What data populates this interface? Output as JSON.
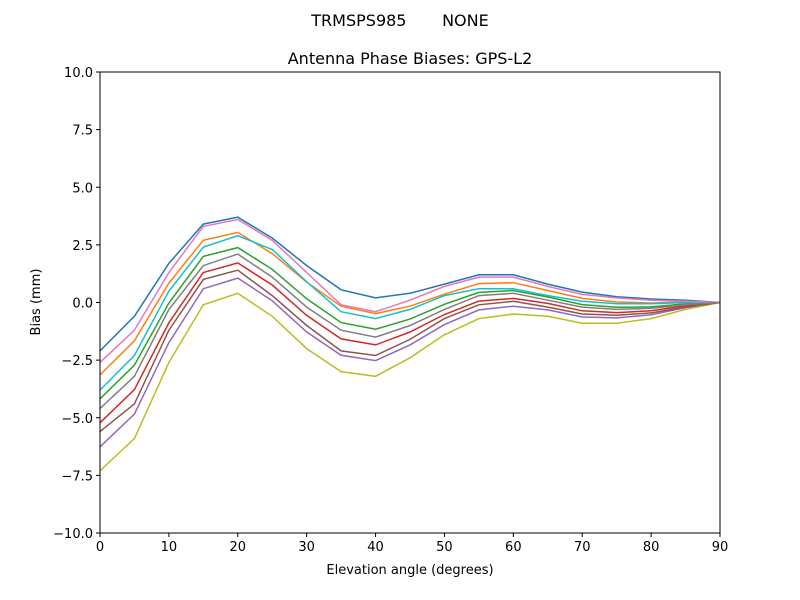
{
  "chart_data": {
    "type": "line",
    "suptitle": "TRMSPS985       NONE",
    "title": "Antenna Phase Biases: GPS-L2",
    "xlabel": "Elevation angle (degrees)",
    "ylabel": "Bias (mm)",
    "xlim": [
      0,
      90
    ],
    "ylim": [
      -10,
      10
    ],
    "xticks": [
      0,
      10,
      20,
      30,
      40,
      50,
      60,
      70,
      80,
      90
    ],
    "yticks": [
      -10.0,
      -7.5,
      -5.0,
      -2.5,
      0.0,
      2.5,
      5.0,
      7.5,
      10.0
    ],
    "ytick_labels": [
      "−10.0",
      "−7.5",
      "−5.0",
      "−2.5",
      "0.0",
      "2.5",
      "5.0",
      "7.5",
      "10.0"
    ],
    "grid": false,
    "x": [
      0,
      5,
      10,
      15,
      20,
      25,
      30,
      35,
      40,
      45,
      50,
      55,
      60,
      65,
      70,
      75,
      80,
      85,
      90
    ],
    "series": [
      {
        "color": "#1f77b4",
        "values": [
          -2.1,
          -0.6,
          1.7,
          3.4,
          3.7,
          2.8,
          1.6,
          0.55,
          0.2,
          0.4,
          0.8,
          1.2,
          1.2,
          0.8,
          0.45,
          0.25,
          0.15,
          0.1,
          0
        ]
      },
      {
        "color": "#ff7f0e",
        "values": [
          -3.14,
          -1.66,
          0.84,
          2.7,
          3.04,
          2.12,
          0.88,
          -0.16,
          -0.48,
          -0.16,
          0.36,
          0.82,
          0.86,
          0.52,
          0.18,
          0.02,
          -0.02,
          0.02,
          0
        ]
      },
      {
        "color": "#2ca02c",
        "values": [
          -4.18,
          -2.72,
          -0.02,
          2.0,
          2.38,
          1.44,
          0.16,
          -0.87,
          -1.16,
          -0.72,
          -0.08,
          0.44,
          0.52,
          0.24,
          -0.09,
          -0.21,
          -0.19,
          -0.06,
          0
        ]
      },
      {
        "color": "#d62728",
        "values": [
          -5.22,
          -3.78,
          -0.88,
          1.3,
          1.72,
          0.76,
          -0.56,
          -1.58,
          -1.84,
          -1.28,
          -0.52,
          0.06,
          0.18,
          -0.04,
          -0.36,
          -0.44,
          -0.36,
          -0.14,
          0
        ]
      },
      {
        "color": "#9467bd",
        "values": [
          -6.26,
          -4.84,
          -1.74,
          0.6,
          1.06,
          0.08,
          -1.28,
          -2.29,
          -2.52,
          -1.84,
          -0.96,
          -0.32,
          -0.16,
          -0.32,
          -0.63,
          -0.67,
          -0.53,
          -0.22,
          0
        ]
      },
      {
        "color": "#bcbd22",
        "values": [
          -7.3,
          -5.9,
          -2.6,
          -0.1,
          0.4,
          -0.6,
          -2.0,
          -3.0,
          -3.2,
          -2.4,
          -1.4,
          -0.7,
          -0.5,
          -0.6,
          -0.9,
          -0.9,
          -0.7,
          -0.3,
          0
        ]
      },
      {
        "color": "#17becf",
        "values": [
          -3.8,
          -2.3,
          0.5,
          2.4,
          2.9,
          2.3,
          0.9,
          -0.4,
          -0.7,
          -0.3,
          0.3,
          0.6,
          0.6,
          0.3,
          0.05,
          -0.05,
          -0.05,
          0.0,
          0
        ]
      },
      {
        "color": "#e377c2",
        "values": [
          -2.6,
          -1.2,
          1.3,
          3.3,
          3.6,
          2.7,
          1.3,
          -0.1,
          -0.4,
          0.1,
          0.7,
          1.1,
          1.1,
          0.7,
          0.35,
          0.2,
          0.1,
          0.05,
          0
        ]
      },
      {
        "color": "#8c564b",
        "values": [
          -5.6,
          -4.4,
          -1.2,
          1.0,
          1.4,
          0.3,
          -1.0,
          -2.1,
          -2.3,
          -1.6,
          -0.7,
          -0.1,
          0.05,
          -0.2,
          -0.5,
          -0.55,
          -0.45,
          -0.2,
          0
        ]
      },
      {
        "color": "#7f7f7f",
        "values": [
          -4.6,
          -3.2,
          -0.3,
          1.6,
          2.1,
          1.1,
          -0.2,
          -1.2,
          -1.5,
          -1.0,
          -0.3,
          0.3,
          0.4,
          0.1,
          -0.2,
          -0.3,
          -0.25,
          -0.1,
          0
        ]
      }
    ]
  }
}
